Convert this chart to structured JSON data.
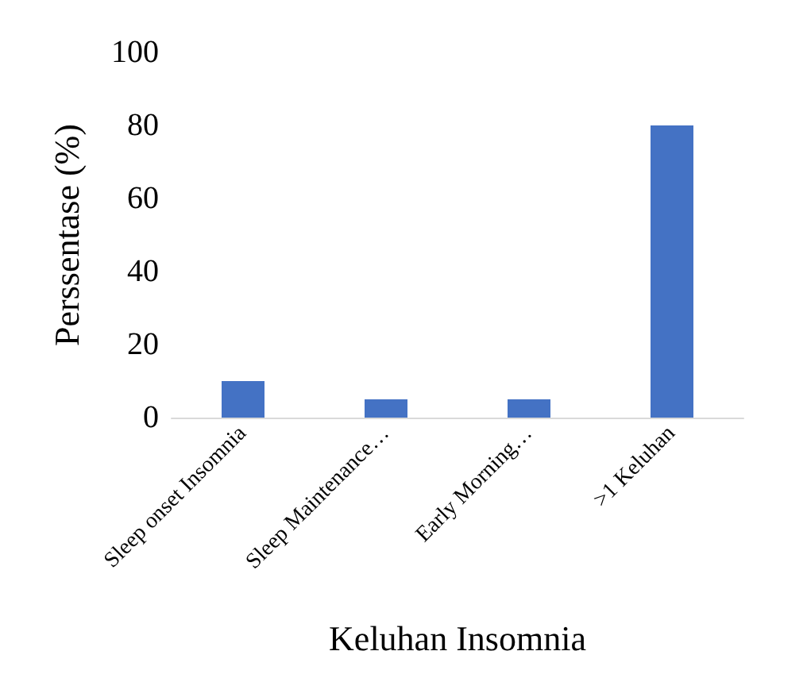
{
  "chart_data": {
    "type": "bar",
    "xlabel": "Keluhan Insomnia",
    "ylabel": "Perssentase (%)",
    "categories": [
      "Sleep onset Insomnia",
      "Sleep Maintenance…",
      "Early Morning…",
      ">1 Keluhan"
    ],
    "values": [
      10,
      5,
      5,
      80
    ],
    "color": "#4472c4",
    "ylim": [
      0,
      100
    ],
    "yticks": [
      0,
      20,
      40,
      60,
      80,
      100
    ],
    "grid": false
  }
}
